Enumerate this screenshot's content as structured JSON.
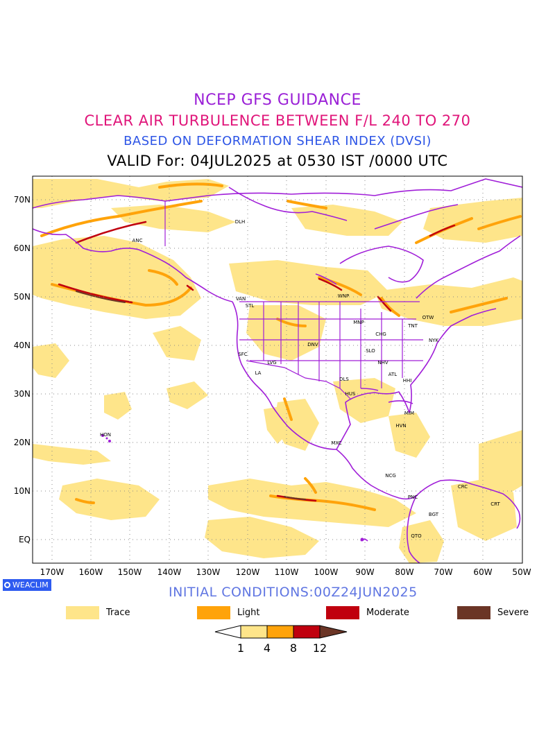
{
  "titles": {
    "line1": "NCEP GFS GUIDANCE",
    "line2": "CLEAR AIR TURBULENCE BETWEEN F/L 240 TO 270",
    "line3": "BASED ON DEFORMATION SHEAR INDEX (DVSI)",
    "line4": "VALID For: 04JUL2025 at 0530 IST /0000 UTC"
  },
  "latitude_labels": [
    "70N",
    "60N",
    "50N",
    "40N",
    "30N",
    "20N",
    "10N",
    "EQ"
  ],
  "longitude_labels": [
    "170W",
    "160W",
    "150W",
    "140W",
    "130W",
    "120W",
    "110W",
    "100W",
    "90W",
    "80W",
    "70W",
    "60W",
    "50W"
  ],
  "stations": [
    {
      "code": "DLH"
    },
    {
      "code": "ANC"
    },
    {
      "code": "VAN"
    },
    {
      "code": "STL"
    },
    {
      "code": "WNP"
    },
    {
      "code": "OTW"
    },
    {
      "code": "TNT"
    },
    {
      "code": "NYK"
    },
    {
      "code": "MNP"
    },
    {
      "code": "CHG"
    },
    {
      "code": "DNV"
    },
    {
      "code": "SLO"
    },
    {
      "code": "SFC"
    },
    {
      "code": "LVG"
    },
    {
      "code": "LA"
    },
    {
      "code": "NHV"
    },
    {
      "code": "ATL"
    },
    {
      "code": "HHI"
    },
    {
      "code": "DLS"
    },
    {
      "code": "HUS"
    },
    {
      "code": "MIM"
    },
    {
      "code": "HVN"
    },
    {
      "code": "HON"
    },
    {
      "code": "MXC"
    },
    {
      "code": "NCG"
    },
    {
      "code": "PNC"
    },
    {
      "code": "CRC"
    },
    {
      "code": "CRT"
    },
    {
      "code": "BGT"
    },
    {
      "code": "QTO"
    }
  ],
  "brand": "WEACLIM",
  "initial_conditions": "INITIAL CONDITIONS:00Z24JUN2025",
  "legend": [
    {
      "label": "Trace",
      "color": "#fee58a"
    },
    {
      "label": "Light",
      "color": "#ffa30a"
    },
    {
      "label": "Moderate",
      "color": "#c0000e"
    },
    {
      "label": "Severe",
      "color": "#6b3526"
    }
  ],
  "colorbar": {
    "levels": [
      "1",
      "4",
      "8",
      "12"
    ],
    "colors": [
      "#ffffff",
      "#fee58a",
      "#ffa30a",
      "#c0000e",
      "#6b3526"
    ]
  },
  "colors": {
    "coastline": "#a01ed8",
    "graticule": "#888888"
  }
}
